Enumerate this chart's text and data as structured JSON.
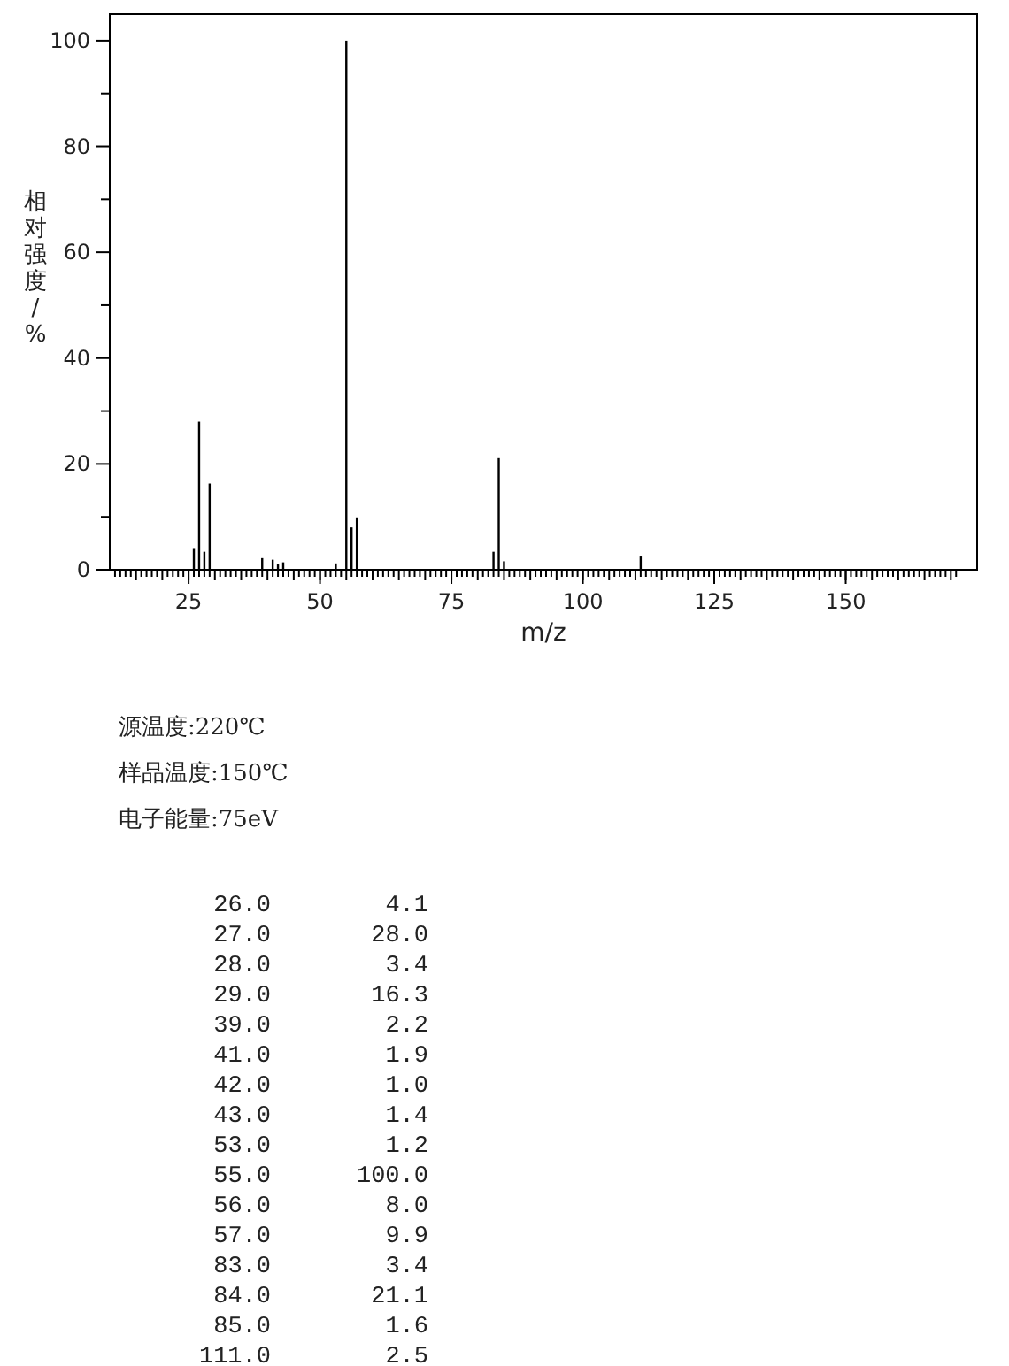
{
  "chart_data": {
    "type": "bar",
    "xlabel": "m/z",
    "ylabel": "相对强度/%",
    "color": "#000000",
    "x": [
      26,
      27,
      28,
      29,
      39,
      41,
      42,
      43,
      53,
      55,
      56,
      57,
      83,
      84,
      85,
      111
    ],
    "values": [
      4.1,
      28.0,
      3.4,
      16.3,
      2.2,
      1.9,
      1.0,
      1.4,
      1.2,
      100.0,
      8.0,
      9.9,
      3.4,
      21.1,
      1.6,
      2.5
    ],
    "xlim": [
      10,
      175
    ],
    "ylim": [
      0,
      105
    ],
    "xticks": [
      25,
      50,
      75,
      100,
      125,
      150
    ],
    "yticks": [
      0,
      {
        "value": 10,
        "label": null
      },
      20,
      {
        "value": 30,
        "label": null
      },
      40,
      {
        "value": 50,
        "label": null
      },
      60,
      {
        "value": 70,
        "label": null
      },
      80,
      {
        "value": 90,
        "label": null
      },
      100
    ],
    "annotations": [
      "源温度:220℃",
      "样品温度:150℃",
      "电子能量:75eV",
      "26.0",
      "4.1",
      "27.0",
      "28.0",
      "28.0",
      "3.4",
      "29.0",
      "16.3",
      "39.0",
      "2.2",
      "41.0",
      "1.9",
      "42.0",
      "1.0",
      "43.0",
      "1.4",
      "53.0",
      "1.2",
      "55.0",
      "100.0",
      "56.0",
      "8.0",
      "57.0",
      "9.9",
      "83.0",
      "3.4",
      "84.0",
      "21.1",
      "85.0",
      "1.6",
      "111.0",
      "2.5"
    ]
  }
}
